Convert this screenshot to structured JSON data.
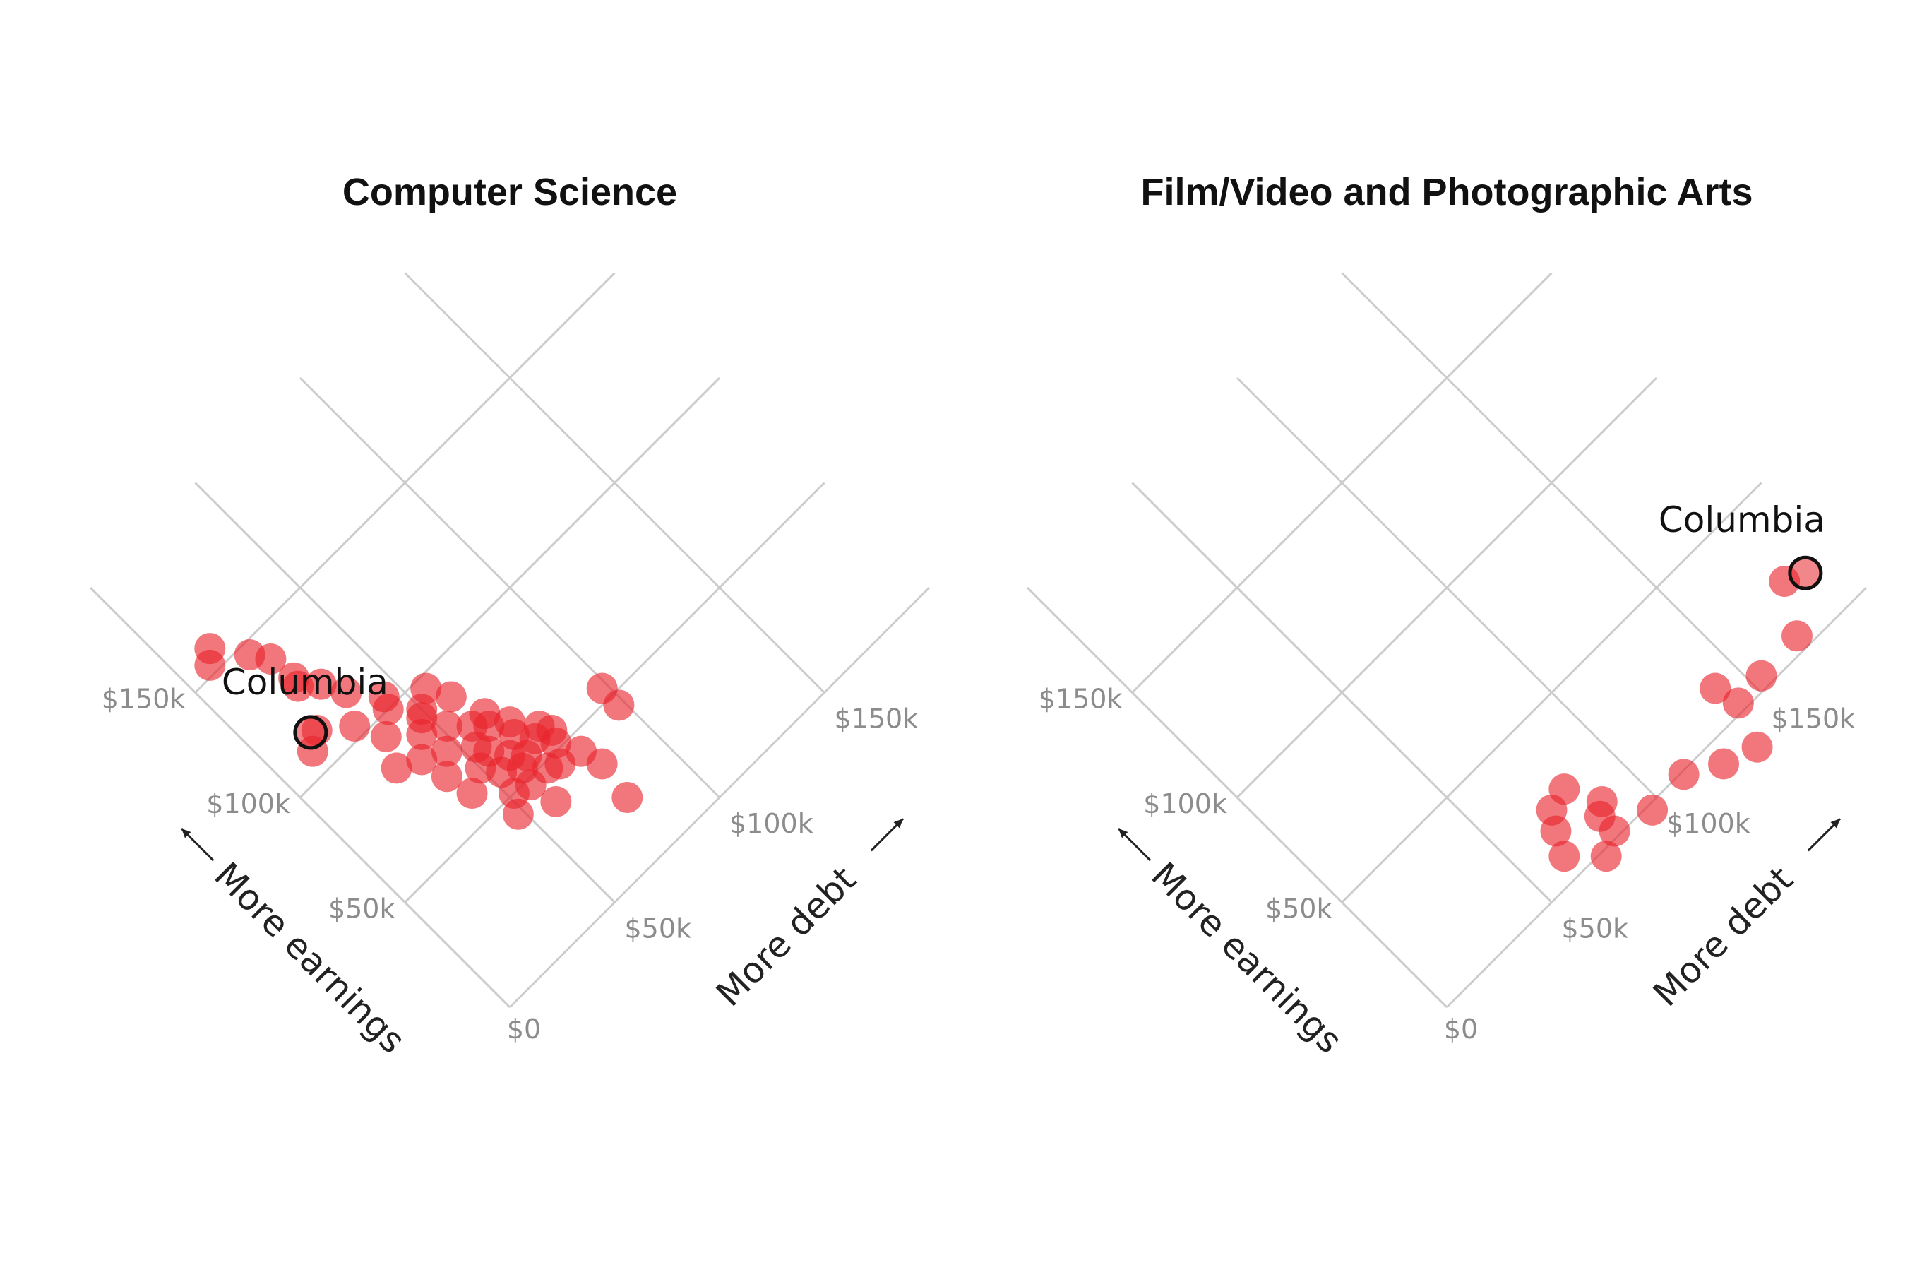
{
  "colors": {
    "point": "#e8242b",
    "highlight_stroke": "#111111",
    "grid": "#cccccc",
    "tick": "#8c8c8c"
  },
  "chart_data": [
    {
      "type": "scatter",
      "title": "Computer Science",
      "earnings_axis_label": "More earnings",
      "debt_axis_label": "More debt",
      "earnings_ticks": [
        "$0",
        "$50k",
        "$100k",
        "$150k"
      ],
      "debt_ticks": [
        "$50k",
        "$100k",
        "$150k"
      ],
      "axis_range": [
        0,
        200000
      ],
      "highlight": {
        "label": "Columbia",
        "debt": 18000,
        "earnings": 113000
      },
      "points": [
        {
          "debt": 10000,
          "earnings": 153000
        },
        {
          "debt": 14000,
          "earnings": 157000
        },
        {
          "debt": 22000,
          "earnings": 146000
        },
        {
          "debt": 26000,
          "earnings": 140000
        },
        {
          "debt": 27000,
          "earnings": 130000
        },
        {
          "debt": 26000,
          "earnings": 127000
        },
        {
          "debt": 32000,
          "earnings": 122000
        },
        {
          "debt": 14000,
          "earnings": 108000
        },
        {
          "debt": 20000,
          "earnings": 112000
        },
        {
          "debt": 36000,
          "earnings": 114000
        },
        {
          "debt": 30000,
          "earnings": 104000
        },
        {
          "debt": 44000,
          "earnings": 104000
        },
        {
          "debt": 56000,
          "earnings": 96000
        },
        {
          "debt": 42000,
          "earnings": 100000
        },
        {
          "debt": 35000,
          "earnings": 94000
        },
        {
          "debt": 50000,
          "earnings": 92000
        },
        {
          "debt": 44000,
          "earnings": 86000
        },
        {
          "debt": 60000,
          "earnings": 88000
        },
        {
          "debt": 30000,
          "earnings": 84000
        },
        {
          "debt": 52000,
          "earnings": 82000
        },
        {
          "debt": 38000,
          "earnings": 80000
        },
        {
          "debt": 46000,
          "earnings": 76000
        },
        {
          "debt": 58000,
          "earnings": 76000
        },
        {
          "debt": 54000,
          "earnings": 70000
        },
        {
          "debt": 62000,
          "earnings": 72000
        },
        {
          "debt": 66000,
          "earnings": 64000
        },
        {
          "debt": 50000,
          "earnings": 64000
        },
        {
          "debt": 60000,
          "earnings": 60000
        },
        {
          "debt": 70000,
          "earnings": 58000
        },
        {
          "debt": 64000,
          "earnings": 56000
        },
        {
          "debt": 60000,
          "earnings": 54000
        },
        {
          "debt": 74000,
          "earnings": 52000
        },
        {
          "debt": 58000,
          "earnings": 48000
        },
        {
          "debt": 52000,
          "earnings": 50000
        },
        {
          "debt": 70000,
          "earnings": 46000
        },
        {
          "debt": 78000,
          "earnings": 44000
        },
        {
          "debt": 80000,
          "earnings": 36000
        },
        {
          "debt": 98000,
          "earnings": 54000
        },
        {
          "debt": 98000,
          "earnings": 46000
        },
        {
          "debt": 78000,
          "earnings": 22000
        },
        {
          "debt": 48000,
          "earnings": 44000
        },
        {
          "debt": 42000,
          "earnings": 60000
        },
        {
          "debt": 74000,
          "earnings": 60000
        },
        {
          "debt": 60000,
          "earnings": 38000
        },
        {
          "debt": 40000,
          "earnings": 70000
        },
        {
          "debt": 48000,
          "earnings": 90000
        },
        {
          "debt": 56000,
          "earnings": 66000
        },
        {
          "debt": 66000,
          "earnings": 48000
        },
        {
          "debt": 68000,
          "earnings": 68000
        },
        {
          "debt": 76000,
          "earnings": 56000
        },
        {
          "debt": 54000,
          "earnings": 58000
        },
        {
          "debt": 64000,
          "earnings": 76000
        }
      ]
    },
    {
      "type": "scatter",
      "title": "Film/Video and Photographic Arts",
      "earnings_axis_label": "More earnings",
      "debt_axis_label": "More debt",
      "earnings_ticks": [
        "$0",
        "$50k",
        "$100k",
        "$150k"
      ],
      "debt_ticks": [
        "$50k",
        "$100k",
        "$150k"
      ],
      "axis_range": [
        0,
        200000
      ],
      "highlight": {
        "label": "Columbia",
        "debt": 189000,
        "earnings": 18000
      },
      "points": [
        {
          "debt": 182000,
          "earnings": 21000
        },
        {
          "debt": 172000,
          "earnings": 5000
        },
        {
          "debt": 154000,
          "earnings": 4000
        },
        {
          "debt": 140000,
          "earnings": 12000
        },
        {
          "debt": 142000,
          "earnings": 3000
        },
        {
          "debt": 124000,
          "earnings": -8000
        },
        {
          "debt": 136000,
          "earnings": -12000
        },
        {
          "debt": 112000,
          "earnings": -1000
        },
        {
          "debt": 86000,
          "earnings": 12000
        },
        {
          "debt": 82000,
          "earnings": 9000
        },
        {
          "debt": 82000,
          "earnings": 2000
        },
        {
          "debt": 96000,
          "earnings": -2000
        },
        {
          "debt": 80000,
          "earnings": 24000
        },
        {
          "debt": 72000,
          "earnings": 22000
        },
        {
          "debt": 68000,
          "earnings": 16000
        },
        {
          "debt": 64000,
          "earnings": 8000
        },
        {
          "debt": 74000,
          "earnings": -2000
        }
      ]
    }
  ]
}
